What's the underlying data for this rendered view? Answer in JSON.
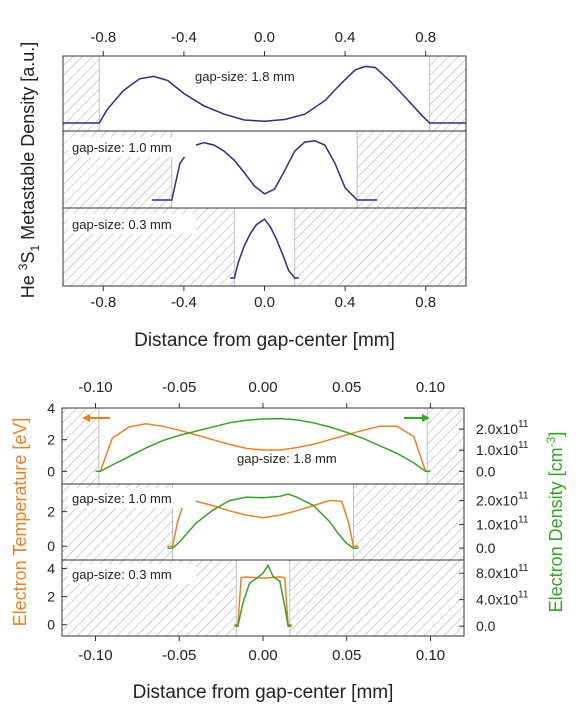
{
  "colors": {
    "metastable": "#2b2b8c",
    "temperature": "#f07f22",
    "density": "#33a524",
    "hatch": "#a8a8a8",
    "axis": "#333333"
  },
  "chart_data": [
    {
      "type": "line",
      "title": "",
      "ylabel": "He 3S1 Metastable Density [a.u.]",
      "ylabel_parts": {
        "pre": "He ",
        "sup": "3",
        "mid": "S",
        "sub": "1",
        "post": " Metastable Density  [a.u.]"
      },
      "xlabel": "Distance from gap-center  [mm]",
      "xlim": [
        -1.0,
        1.0
      ],
      "xticks": [
        -0.8,
        -0.4,
        0.0,
        0.4,
        0.8
      ],
      "xtick_labels": [
        "-0.8",
        "-0.4",
        "0.0",
        "0.4",
        "0.8"
      ],
      "panels": [
        {
          "label": "gap-size: 1.8 mm",
          "gap_edges": [
            -0.82,
            0.82
          ],
          "series": [
            {
              "x": [
                -1.0,
                -0.82,
                -0.78,
                -0.7,
                -0.62,
                -0.55,
                -0.48,
                -0.4,
                -0.3,
                -0.2,
                -0.1,
                0.0,
                0.1,
                0.2,
                0.3,
                0.38,
                0.45,
                0.5,
                0.55,
                0.62,
                0.7,
                0.78,
                0.82,
                1.0
              ],
              "y": [
                0.0,
                0.0,
                0.23,
                0.55,
                0.75,
                0.79,
                0.72,
                0.5,
                0.29,
                0.15,
                0.05,
                0.03,
                0.06,
                0.15,
                0.38,
                0.67,
                0.9,
                0.96,
                0.94,
                0.72,
                0.43,
                0.13,
                0.0,
                0.0
              ]
            }
          ]
        },
        {
          "label": "gap-size: 1.0 mm",
          "gap_edges": [
            -0.46,
            0.46
          ],
          "series": [
            {
              "x": [
                -0.56,
                -0.46,
                -0.42,
                -0.36,
                -0.3,
                -0.25,
                -0.2,
                -0.15,
                -0.1,
                -0.05,
                0.0,
                0.05,
                0.1,
                0.15,
                0.2,
                0.25,
                0.3,
                0.35,
                0.4,
                0.46,
                0.56
              ],
              "y": [
                0.0,
                0.0,
                0.6,
                0.88,
                0.94,
                0.9,
                0.8,
                0.65,
                0.45,
                0.23,
                0.1,
                0.18,
                0.48,
                0.8,
                0.95,
                0.97,
                0.9,
                0.6,
                0.2,
                0.0,
                0.0
              ]
            }
          ]
        },
        {
          "label": "gap-size: 0.3 mm",
          "gap_edges": [
            -0.15,
            0.15
          ],
          "series": [
            {
              "x": [
                -0.17,
                -0.15,
                -0.13,
                -0.1,
                -0.07,
                -0.04,
                0.0,
                0.03,
                0.06,
                0.09,
                0.12,
                0.15,
                0.17
              ],
              "y": [
                0.0,
                0.0,
                0.25,
                0.52,
                0.72,
                0.86,
                0.95,
                0.82,
                0.62,
                0.38,
                0.12,
                0.0,
                0.0
              ]
            }
          ]
        }
      ]
    },
    {
      "type": "line",
      "title": "",
      "ylabel_left": "Electron Temperature  [eV]",
      "ylabel_right": "Electron Density  [cm",
      "ylabel_right_sup": "-3",
      "ylabel_right_close": "]",
      "xlabel": "Distance from gap-center  [mm]",
      "xlim": [
        -0.12,
        0.12
      ],
      "xticks": [
        -0.1,
        -0.05,
        0.0,
        0.05,
        0.1
      ],
      "xtick_labels": [
        "-0.10",
        "-0.05",
        "0.00",
        "0.05",
        "0.10"
      ],
      "panels": [
        {
          "label": "gap-size: 1.8 mm",
          "gap_edges": [
            -0.098,
            0.098
          ],
          "y_left": {
            "ylim": [
              -0.8,
              4
            ],
            "ticks": [
              0,
              2,
              4
            ],
            "tick_labels": [
              "0",
              "2",
              "4"
            ]
          },
          "y_right": {
            "ylim": [
              -0.6,
              3.0
            ],
            "ticks": [
              0,
              1,
              2
            ],
            "tick_mantissa": [
              "0.0",
              "1.0x10",
              "2.0x10"
            ],
            "tick_exp": [
              "",
              "11",
              "11"
            ]
          },
          "show_arrows": true,
          "temperature": {
            "x": [
              -0.1,
              -0.097,
              -0.09,
              -0.08,
              -0.07,
              -0.06,
              -0.05,
              -0.04,
              -0.03,
              -0.02,
              -0.01,
              0.0,
              0.01,
              0.02,
              0.03,
              0.04,
              0.05,
              0.06,
              0.07,
              0.08,
              0.09,
              0.097,
              0.1
            ],
            "y": [
              0.0,
              0.0,
              2.1,
              2.8,
              3.0,
              2.85,
              2.6,
              2.3,
              2.0,
              1.7,
              1.45,
              1.35,
              1.35,
              1.5,
              1.7,
              2.0,
              2.3,
              2.6,
              2.85,
              2.85,
              2.2,
              0.0,
              0.0
            ]
          },
          "density": {
            "x": [
              -0.1,
              -0.097,
              -0.09,
              -0.08,
              -0.07,
              -0.06,
              -0.05,
              -0.04,
              -0.03,
              -0.02,
              -0.01,
              0.0,
              0.01,
              0.02,
              0.03,
              0.04,
              0.05,
              0.06,
              0.07,
              0.08,
              0.09,
              0.097,
              0.1
            ],
            "y": [
              0.0,
              0.0,
              0.3,
              0.7,
              1.1,
              1.45,
              1.7,
              1.9,
              2.1,
              2.3,
              2.42,
              2.48,
              2.5,
              2.44,
              2.3,
              2.1,
              1.85,
              1.55,
              1.2,
              0.85,
              0.4,
              0.0,
              0.0
            ]
          }
        },
        {
          "label": "gap-size: 1.0 mm",
          "gap_edges": [
            -0.054,
            0.054
          ],
          "y_left": {
            "ylim": [
              -0.8,
              3.6
            ],
            "ticks": [
              0,
              2
            ],
            "tick_labels": [
              "0",
              "2"
            ]
          },
          "y_right": {
            "ylim": [
              -0.5,
              2.7
            ],
            "ticks": [
              0,
              1,
              2
            ],
            "tick_mantissa": [
              "0.0",
              "1.0x10",
              "2.0x10"
            ],
            "tick_exp": [
              "",
              "11",
              "11"
            ]
          },
          "show_arrows": false,
          "temperature": {
            "x": [
              -0.057,
              -0.054,
              -0.051,
              -0.047,
              -0.04,
              -0.03,
              -0.02,
              -0.01,
              0.0,
              0.01,
              0.02,
              0.03,
              0.04,
              0.047,
              0.051,
              0.054,
              0.057
            ],
            "y": [
              0.0,
              0.0,
              1.4,
              2.6,
              2.6,
              2.35,
              2.05,
              1.8,
              1.65,
              1.8,
              2.05,
              2.35,
              2.65,
              2.6,
              1.4,
              0.0,
              0.0
            ]
          },
          "density": {
            "x": [
              -0.057,
              -0.054,
              -0.05,
              -0.045,
              -0.04,
              -0.03,
              -0.02,
              -0.01,
              0.0,
              0.01,
              0.015,
              0.02,
              0.03,
              0.04,
              0.045,
              0.05,
              0.054,
              0.057
            ],
            "y": [
              0.0,
              0.0,
              0.25,
              0.65,
              1.05,
              1.6,
              2.0,
              2.15,
              2.12,
              2.18,
              2.28,
              2.15,
              1.8,
              1.1,
              0.6,
              0.2,
              0.0,
              0.0
            ]
          }
        },
        {
          "label": "gap-size: 0.3 mm",
          "gap_edges": [
            -0.016,
            0.016
          ],
          "y_left": {
            "ylim": [
              -0.8,
              4.6
            ],
            "ticks": [
              0,
              2,
              4
            ],
            "tick_labels": [
              "0",
              "2",
              "4"
            ]
          },
          "y_right": {
            "ylim": [
              -1.5,
              10.0
            ],
            "ticks": [
              0,
              4,
              8
            ],
            "tick_mantissa": [
              "0.0",
              "4.0x10",
              "8.0x10"
            ],
            "tick_exp": [
              "",
              "11",
              "11"
            ]
          },
          "show_arrows": false,
          "temperature": {
            "x": [
              -0.017,
              -0.015,
              -0.013,
              -0.01,
              -0.005,
              0.0,
              0.005,
              0.01,
              0.013,
              0.015,
              0.017
            ],
            "y": [
              0.0,
              0.0,
              3.35,
              3.4,
              3.35,
              3.3,
              3.35,
              3.4,
              3.35,
              0.0,
              0.0
            ]
          },
          "density": {
            "x": [
              -0.017,
              -0.015,
              -0.012,
              -0.008,
              -0.004,
              0.0,
              0.003,
              0.006,
              0.01,
              0.013,
              0.015,
              0.017
            ],
            "y": [
              0.0,
              0.0,
              3.5,
              6.5,
              7.2,
              8.0,
              9.2,
              7.5,
              6.8,
              3.0,
              0.0,
              0.0
            ]
          }
        }
      ]
    }
  ]
}
